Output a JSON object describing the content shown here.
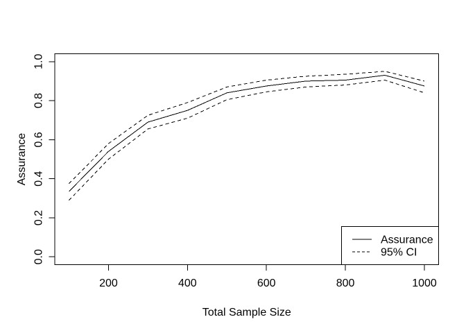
{
  "figure": {
    "background": "#ffffff"
  },
  "chart_data": {
    "type": "line",
    "title": "",
    "xlabel": "Total Sample Size",
    "ylabel": "Assurance",
    "x": [
      100,
      200,
      300,
      400,
      500,
      600,
      700,
      800,
      900,
      1000
    ],
    "series": [
      {
        "name": "Assurance",
        "linetype": "solid",
        "values": [
          0.335,
          0.54,
          0.69,
          0.75,
          0.84,
          0.875,
          0.9,
          0.905,
          0.93,
          0.875
        ]
      },
      {
        "name": "95% CI upper",
        "linetype": "dashed",
        "values": [
          0.375,
          0.58,
          0.725,
          0.79,
          0.87,
          0.905,
          0.925,
          0.935,
          0.95,
          0.9
        ]
      },
      {
        "name": "95% CI lower",
        "linetype": "dashed",
        "values": [
          0.29,
          0.5,
          0.655,
          0.71,
          0.805,
          0.845,
          0.87,
          0.88,
          0.905,
          0.84
        ]
      }
    ],
    "x_ticks": [
      "200",
      "400",
      "600",
      "800",
      "1000"
    ],
    "y_ticks": [
      "0.0",
      "0.2",
      "0.4",
      "0.6",
      "0.8",
      "1.0"
    ],
    "xlim": [
      64,
      1036
    ],
    "ylim": [
      -0.04,
      1.04
    ],
    "grid": false,
    "legend": {
      "position": "bottomright",
      "entries": [
        {
          "label": "Assurance",
          "linetype": "solid"
        },
        {
          "label": "95% CI",
          "linetype": "dashed"
        }
      ]
    },
    "colors": {
      "line": "#000000",
      "text": "#000000",
      "background": "#ffffff"
    }
  }
}
